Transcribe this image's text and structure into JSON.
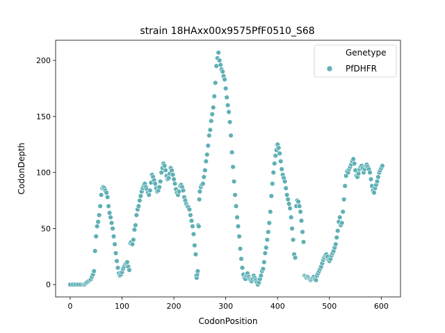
{
  "chart_data": {
    "type": "scatter",
    "title": "strain 18HAxx00x9575PfF0510_S68",
    "xlabel": "CodonPosition",
    "ylabel": "CodonDepth",
    "xlim": [
      -28,
      637
    ],
    "ylim": [
      -11,
      218
    ],
    "x_ticks": [
      0,
      100,
      200,
      300,
      400,
      500,
      600
    ],
    "y_ticks": [
      0,
      50,
      100,
      150,
      200
    ],
    "grid": false,
    "legend": {
      "placement": "top-right",
      "title": "Genetype",
      "entries": [
        {
          "label": "PfDHFR",
          "color": "#5fb0b5"
        }
      ]
    },
    "color": "#5fb0b5",
    "series": [
      {
        "name": "PfDHFR",
        "points": [
          [
            0,
            0
          ],
          [
            5,
            0
          ],
          [
            10,
            0
          ],
          [
            15,
            0
          ],
          [
            20,
            0
          ],
          [
            25,
            0
          ],
          [
            28,
            0
          ],
          [
            30,
            1
          ],
          [
            32,
            2
          ],
          [
            35,
            3
          ],
          [
            38,
            4
          ],
          [
            40,
            5
          ],
          [
            42,
            7
          ],
          [
            44,
            9
          ],
          [
            46,
            12
          ],
          [
            48,
            30
          ],
          [
            50,
            43
          ],
          [
            52,
            52
          ],
          [
            54,
            56
          ],
          [
            56,
            62
          ],
          [
            58,
            70
          ],
          [
            60,
            80
          ],
          [
            62,
            86
          ],
          [
            64,
            87
          ],
          [
            66,
            86
          ],
          [
            68,
            84
          ],
          [
            70,
            82
          ],
          [
            72,
            78
          ],
          [
            74,
            70
          ],
          [
            76,
            64
          ],
          [
            78,
            60
          ],
          [
            80,
            55
          ],
          [
            82,
            50
          ],
          [
            84,
            43
          ],
          [
            86,
            36
          ],
          [
            88,
            28
          ],
          [
            90,
            21
          ],
          [
            92,
            15
          ],
          [
            94,
            10
          ],
          [
            96,
            8
          ],
          [
            98,
            9
          ],
          [
            100,
            11
          ],
          [
            102,
            14
          ],
          [
            104,
            16
          ],
          [
            106,
            18
          ],
          [
            108,
            19
          ],
          [
            110,
            20
          ],
          [
            112,
            16
          ],
          [
            114,
            13
          ],
          [
            116,
            37
          ],
          [
            118,
            38
          ],
          [
            120,
            36
          ],
          [
            122,
            40
          ],
          [
            124,
            49
          ],
          [
            126,
            53
          ],
          [
            128,
            62
          ],
          [
            130,
            67
          ],
          [
            132,
            70
          ],
          [
            134,
            75
          ],
          [
            136,
            79
          ],
          [
            138,
            83
          ],
          [
            140,
            86
          ],
          [
            142,
            88
          ],
          [
            144,
            90
          ],
          [
            146,
            87
          ],
          [
            148,
            85
          ],
          [
            150,
            82
          ],
          [
            152,
            80
          ],
          [
            154,
            84
          ],
          [
            156,
            91
          ],
          [
            158,
            98
          ],
          [
            160,
            96
          ],
          [
            162,
            93
          ],
          [
            164,
            90
          ],
          [
            166,
            86
          ],
          [
            168,
            83
          ],
          [
            170,
            84
          ],
          [
            172,
            87
          ],
          [
            174,
            92
          ],
          [
            176,
            100
          ],
          [
            178,
            104
          ],
          [
            180,
            108
          ],
          [
            182,
            106
          ],
          [
            184,
            102
          ],
          [
            186,
            97
          ],
          [
            188,
            94
          ],
          [
            190,
            95
          ],
          [
            192,
            99
          ],
          [
            194,
            104
          ],
          [
            196,
            102
          ],
          [
            198,
            98
          ],
          [
            200,
            94
          ],
          [
            202,
            90
          ],
          [
            204,
            85
          ],
          [
            206,
            82
          ],
          [
            208,
            80
          ],
          [
            210,
            83
          ],
          [
            212,
            88
          ],
          [
            214,
            89
          ],
          [
            216,
            87
          ],
          [
            218,
            84
          ],
          [
            220,
            78
          ],
          [
            222,
            75
          ],
          [
            224,
            72
          ],
          [
            226,
            70
          ],
          [
            228,
            69
          ],
          [
            230,
            67
          ],
          [
            232,
            62
          ],
          [
            234,
            57
          ],
          [
            236,
            52
          ],
          [
            238,
            45
          ],
          [
            240,
            35
          ],
          [
            242,
            27
          ],
          [
            243,
            8
          ],
          [
            244,
            6
          ],
          [
            245,
            9
          ],
          [
            246,
            12
          ],
          [
            247,
            53
          ],
          [
            248,
            52
          ],
          [
            249,
            76
          ],
          [
            250,
            83
          ],
          [
            252,
            87
          ],
          [
            254,
            89
          ],
          [
            256,
            90
          ],
          [
            258,
            96
          ],
          [
            260,
            102
          ],
          [
            262,
            110
          ],
          [
            264,
            116
          ],
          [
            266,
            124
          ],
          [
            268,
            133
          ],
          [
            270,
            138
          ],
          [
            272,
            146
          ],
          [
            274,
            152
          ],
          [
            276,
            158
          ],
          [
            278,
            168
          ],
          [
            280,
            180
          ],
          [
            282,
            195
          ],
          [
            284,
            202
          ],
          [
            286,
            207
          ],
          [
            288,
            200
          ],
          [
            290,
            196
          ],
          [
            292,
            192
          ],
          [
            294,
            190
          ],
          [
            296,
            186
          ],
          [
            298,
            183
          ],
          [
            300,
            175
          ],
          [
            302,
            167
          ],
          [
            304,
            160
          ],
          [
            306,
            154
          ],
          [
            308,
            145
          ],
          [
            310,
            133
          ],
          [
            312,
            118
          ],
          [
            314,
            105
          ],
          [
            316,
            92
          ],
          [
            318,
            80
          ],
          [
            320,
            70
          ],
          [
            322,
            60
          ],
          [
            324,
            52
          ],
          [
            326,
            43
          ],
          [
            328,
            32
          ],
          [
            330,
            23
          ],
          [
            332,
            15
          ],
          [
            334,
            9
          ],
          [
            336,
            6
          ],
          [
            338,
            5
          ],
          [
            340,
            8
          ],
          [
            342,
            10
          ],
          [
            344,
            7
          ],
          [
            346,
            5
          ],
          [
            348,
            4
          ],
          [
            350,
            3
          ],
          [
            352,
            5
          ],
          [
            354,
            8
          ],
          [
            356,
            6
          ],
          [
            358,
            4
          ],
          [
            360,
            2
          ],
          [
            362,
            0
          ],
          [
            364,
            2
          ],
          [
            366,
            5
          ],
          [
            368,
            8
          ],
          [
            370,
            12
          ],
          [
            372,
            14
          ],
          [
            374,
            20
          ],
          [
            376,
            28
          ],
          [
            378,
            33
          ],
          [
            380,
            40
          ],
          [
            382,
            47
          ],
          [
            384,
            55
          ],
          [
            386,
            65
          ],
          [
            388,
            79
          ],
          [
            390,
            90
          ],
          [
            392,
            100
          ],
          [
            394,
            108
          ],
          [
            396,
            115
          ],
          [
            398,
            120
          ],
          [
            400,
            125
          ],
          [
            402,
            122
          ],
          [
            404,
            117
          ],
          [
            406,
            110
          ],
          [
            408,
            103
          ],
          [
            410,
            98
          ],
          [
            412,
            95
          ],
          [
            414,
            92
          ],
          [
            416,
            86
          ],
          [
            418,
            80
          ],
          [
            420,
            76
          ],
          [
            422,
            72
          ],
          [
            424,
            68
          ],
          [
            426,
            60
          ],
          [
            428,
            50
          ],
          [
            430,
            40
          ],
          [
            432,
            27
          ],
          [
            434,
            24
          ],
          [
            436,
            70
          ],
          [
            438,
            75
          ],
          [
            440,
            74
          ],
          [
            442,
            70
          ],
          [
            444,
            65
          ],
          [
            446,
            57
          ],
          [
            448,
            47
          ],
          [
            450,
            38
          ],
          [
            452,
            8
          ],
          [
            454,
            7
          ],
          [
            456,
            6
          ],
          [
            458,
            7
          ],
          [
            460,
            6
          ],
          [
            462,
            5
          ],
          [
            464,
            4
          ],
          [
            466,
            5
          ],
          [
            468,
            6
          ],
          [
            470,
            7
          ],
          [
            472,
            5
          ],
          [
            474,
            4
          ],
          [
            476,
            8
          ],
          [
            478,
            10
          ],
          [
            480,
            12
          ],
          [
            482,
            14
          ],
          [
            484,
            16
          ],
          [
            486,
            19
          ],
          [
            488,
            22
          ],
          [
            490,
            24
          ],
          [
            492,
            26
          ],
          [
            494,
            27
          ],
          [
            496,
            25
          ],
          [
            498,
            22
          ],
          [
            500,
            21
          ],
          [
            502,
            23
          ],
          [
            504,
            26
          ],
          [
            506,
            28
          ],
          [
            508,
            30
          ],
          [
            510,
            33
          ],
          [
            512,
            36
          ],
          [
            514,
            42
          ],
          [
            516,
            48
          ],
          [
            518,
            56
          ],
          [
            520,
            60
          ],
          [
            522,
            53
          ],
          [
            524,
            55
          ],
          [
            526,
            65
          ],
          [
            528,
            76
          ],
          [
            530,
            88
          ],
          [
            532,
            97
          ],
          [
            534,
            101
          ],
          [
            536,
            100
          ],
          [
            538,
            103
          ],
          [
            540,
            105
          ],
          [
            542,
            107
          ],
          [
            544,
            110
          ],
          [
            546,
            112
          ],
          [
            548,
            108
          ],
          [
            550,
            102
          ],
          [
            552,
            97
          ],
          [
            554,
            96
          ],
          [
            556,
            99
          ],
          [
            558,
            103
          ],
          [
            560,
            105
          ],
          [
            562,
            106
          ],
          [
            564,
            104
          ],
          [
            566,
            100
          ],
          [
            568,
            103
          ],
          [
            570,
            106
          ],
          [
            572,
            107
          ],
          [
            574,
            105
          ],
          [
            576,
            103
          ],
          [
            578,
            100
          ],
          [
            580,
            94
          ],
          [
            582,
            88
          ],
          [
            584,
            84
          ],
          [
            586,
            82
          ],
          [
            588,
            86
          ],
          [
            590,
            89
          ],
          [
            592,
            92
          ],
          [
            594,
            96
          ],
          [
            596,
            100
          ],
          [
            598,
            102
          ],
          [
            600,
            104
          ],
          [
            602,
            106
          ]
        ]
      }
    ]
  }
}
